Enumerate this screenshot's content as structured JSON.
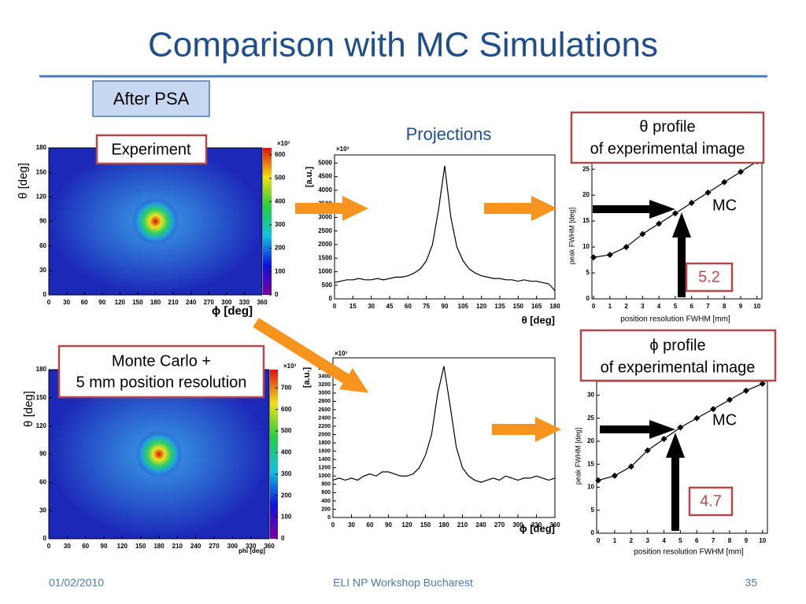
{
  "title": "Comparison with MC Simulations",
  "badge": "After PSA",
  "projections_label": "Projections",
  "experiment_label": "Experiment",
  "mc_label": [
    "Monte Carlo +",
    "5 mm position resolution"
  ],
  "theta_box": [
    "θ profile",
    "of experimental image"
  ],
  "phi_box": [
    "ϕ profile",
    "of experimental image"
  ],
  "mc_marks": [
    "MC",
    "MC"
  ],
  "results": [
    5.2,
    4.7
  ],
  "footer": {
    "date": "01/02/2010",
    "event": "ELI NP Workshop Bucharest",
    "page": 35
  },
  "chart_data": [
    {
      "type": "heatmap",
      "xlim": [
        0,
        360
      ],
      "xticks": [
        0,
        30,
        60,
        90,
        120,
        150,
        180,
        210,
        240,
        270,
        300,
        330,
        360
      ],
      "ylim": [
        0,
        180
      ],
      "yticks": [
        0,
        30,
        60,
        90,
        120,
        150,
        180
      ],
      "x_label": "ϕ [deg]",
      "y_label": "θ [deg]",
      "colorbar_lim": [
        0,
        630
      ],
      "colorbar_ticks": [
        0,
        100,
        200,
        300,
        400,
        500,
        600
      ],
      "colorbar_multiplier": "×10³"
    },
    {
      "type": "line",
      "x": [
        0,
        5,
        10,
        15,
        20,
        25,
        30,
        35,
        40,
        45,
        50,
        55,
        60,
        65,
        70,
        75,
        80,
        85,
        90,
        95,
        100,
        105,
        110,
        115,
        120,
        125,
        130,
        135,
        140,
        145,
        150,
        155,
        160,
        165,
        170,
        175,
        180
      ],
      "values": [
        600,
        650,
        700,
        700,
        750,
        700,
        700,
        750,
        700,
        750,
        800,
        800,
        850,
        950,
        1100,
        1400,
        2000,
        3300,
        4900,
        3000,
        1900,
        1400,
        1100,
        950,
        850,
        800,
        750,
        750,
        700,
        700,
        650,
        700,
        650,
        650,
        600,
        550,
        300
      ],
      "color": "#000000",
      "xlim": [
        0,
        180
      ],
      "xticks": [
        0,
        15,
        30,
        45,
        60,
        75,
        90,
        105,
        120,
        135,
        150,
        165,
        180
      ],
      "ylim": [
        0,
        5300
      ],
      "yticks": [
        0,
        500,
        1000,
        1500,
        2000,
        2500,
        3000,
        3500,
        4000,
        4500,
        5000
      ],
      "x_label": "θ [deg]",
      "y_label": "[a.u.]",
      "y_multiplier": "×10³"
    },
    {
      "type": "heatmap",
      "xlim": [
        0,
        360
      ],
      "xticks": [
        0,
        30,
        60,
        90,
        120,
        150,
        180,
        210,
        240,
        270,
        300,
        330,
        360
      ],
      "ylim": [
        0,
        180
      ],
      "yticks": [
        0,
        30,
        60,
        90,
        120,
        150,
        180
      ],
      "x_label": "phi [deg]",
      "y_label": "θ [deg]",
      "colorbar_lim": [
        0,
        785
      ],
      "colorbar_ticks": [
        0,
        100,
        200,
        300,
        400,
        500,
        600,
        700
      ],
      "colorbar_multiplier": "×10³"
    },
    {
      "type": "line",
      "x": [
        0,
        10,
        20,
        30,
        40,
        50,
        60,
        70,
        80,
        90,
        100,
        110,
        120,
        130,
        140,
        150,
        160,
        170,
        180,
        190,
        200,
        210,
        220,
        230,
        240,
        250,
        260,
        270,
        280,
        290,
        300,
        310,
        320,
        330,
        340,
        350,
        360
      ],
      "values": [
        900,
        950,
        900,
        950,
        900,
        1000,
        1050,
        1000,
        1100,
        1100,
        1050,
        1000,
        1000,
        1050,
        1200,
        1500,
        2000,
        3000,
        3650,
        2700,
        1700,
        1200,
        1000,
        900,
        850,
        900,
        950,
        900,
        1000,
        950,
        900,
        950,
        950,
        1000,
        950,
        900,
        950
      ],
      "color": "#000000",
      "xlim": [
        0,
        360
      ],
      "xticks": [
        0,
        30,
        60,
        90,
        120,
        150,
        180,
        210,
        240,
        270,
        300,
        330,
        360
      ],
      "ylim": [
        0,
        3850
      ],
      "yticks": [
        0,
        200,
        400,
        600,
        800,
        1000,
        1200,
        1400,
        1600,
        1800,
        2000,
        2200,
        2400,
        2600,
        2800,
        3000,
        3200,
        3400,
        3600
      ],
      "x_label": "ϕ [deg]",
      "y_label": "[a.u.]",
      "y_multiplier": "×10³"
    },
    {
      "type": "line",
      "x": [
        0,
        1,
        2,
        3,
        4,
        5,
        6,
        7,
        8,
        9,
        10
      ],
      "values": [
        8,
        8.5,
        10,
        12.5,
        14.5,
        16.5,
        18.5,
        20.5,
        22.5,
        24.5,
        26.5
      ],
      "color": "#000000",
      "markers": true,
      "xlim": [
        -0.1,
        10.3
      ],
      "xticks": [
        0,
        1,
        2,
        3,
        4,
        5,
        6,
        7,
        8,
        9,
        10
      ],
      "ylim": [
        0,
        27.3
      ],
      "yticks": [
        0,
        5,
        10,
        15,
        20,
        25
      ],
      "x_label": "position resolution FWHM [mm]",
      "y_label": "peak FWHM [deg]"
    },
    {
      "type": "line",
      "x": [
        0,
        1,
        2,
        3,
        4,
        5,
        6,
        7,
        8,
        9,
        10
      ],
      "values": [
        11.5,
        12.5,
        14.5,
        18,
        20.5,
        23,
        25,
        27,
        29,
        31,
        32.5
      ],
      "color": "#000000",
      "markers": true,
      "xlim": [
        -0.1,
        10.3
      ],
      "xticks": [
        0,
        1,
        2,
        3,
        4,
        5,
        6,
        7,
        8,
        9,
        10
      ],
      "ylim": [
        0,
        33
      ],
      "yticks": [
        0,
        5,
        10,
        15,
        20,
        25,
        30
      ],
      "x_label": "position resolution FWHM [mm]",
      "y_label": "peak FWHM [deg]"
    }
  ]
}
